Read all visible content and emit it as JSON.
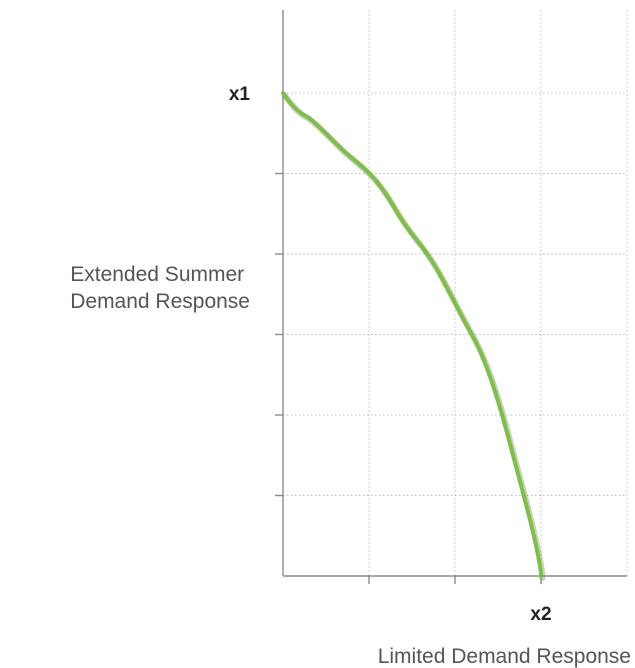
{
  "chart_data": {
    "type": "line",
    "title": "",
    "xlabel": "Limited Demand Response",
    "ylabel": [
      "Extended Summer",
      "Demand Response"
    ],
    "xlim": [
      0,
      4
    ],
    "ylim": [
      0,
      6
    ],
    "x_tick_labels": [
      {
        "x": 3,
        "label": "x2"
      }
    ],
    "y_tick_labels": [
      {
        "y": 6,
        "label": "x1"
      }
    ],
    "grid": true,
    "legend": "none",
    "series": [
      {
        "color": "#7cc242",
        "x": [
          0,
          0.08,
          0.2,
          0.3,
          0.5,
          0.7,
          1.0,
          1.2,
          1.4,
          1.7,
          1.9,
          2.1,
          2.3,
          2.5,
          2.7,
          2.85,
          2.95,
          3.0,
          3.0
        ],
        "y": [
          6.0,
          5.88,
          5.75,
          5.7,
          5.5,
          5.28,
          5.02,
          4.75,
          4.38,
          3.98,
          3.6,
          3.18,
          2.8,
          2.2,
          1.4,
          0.8,
          0.35,
          0.05,
          0.0
        ]
      }
    ]
  }
}
